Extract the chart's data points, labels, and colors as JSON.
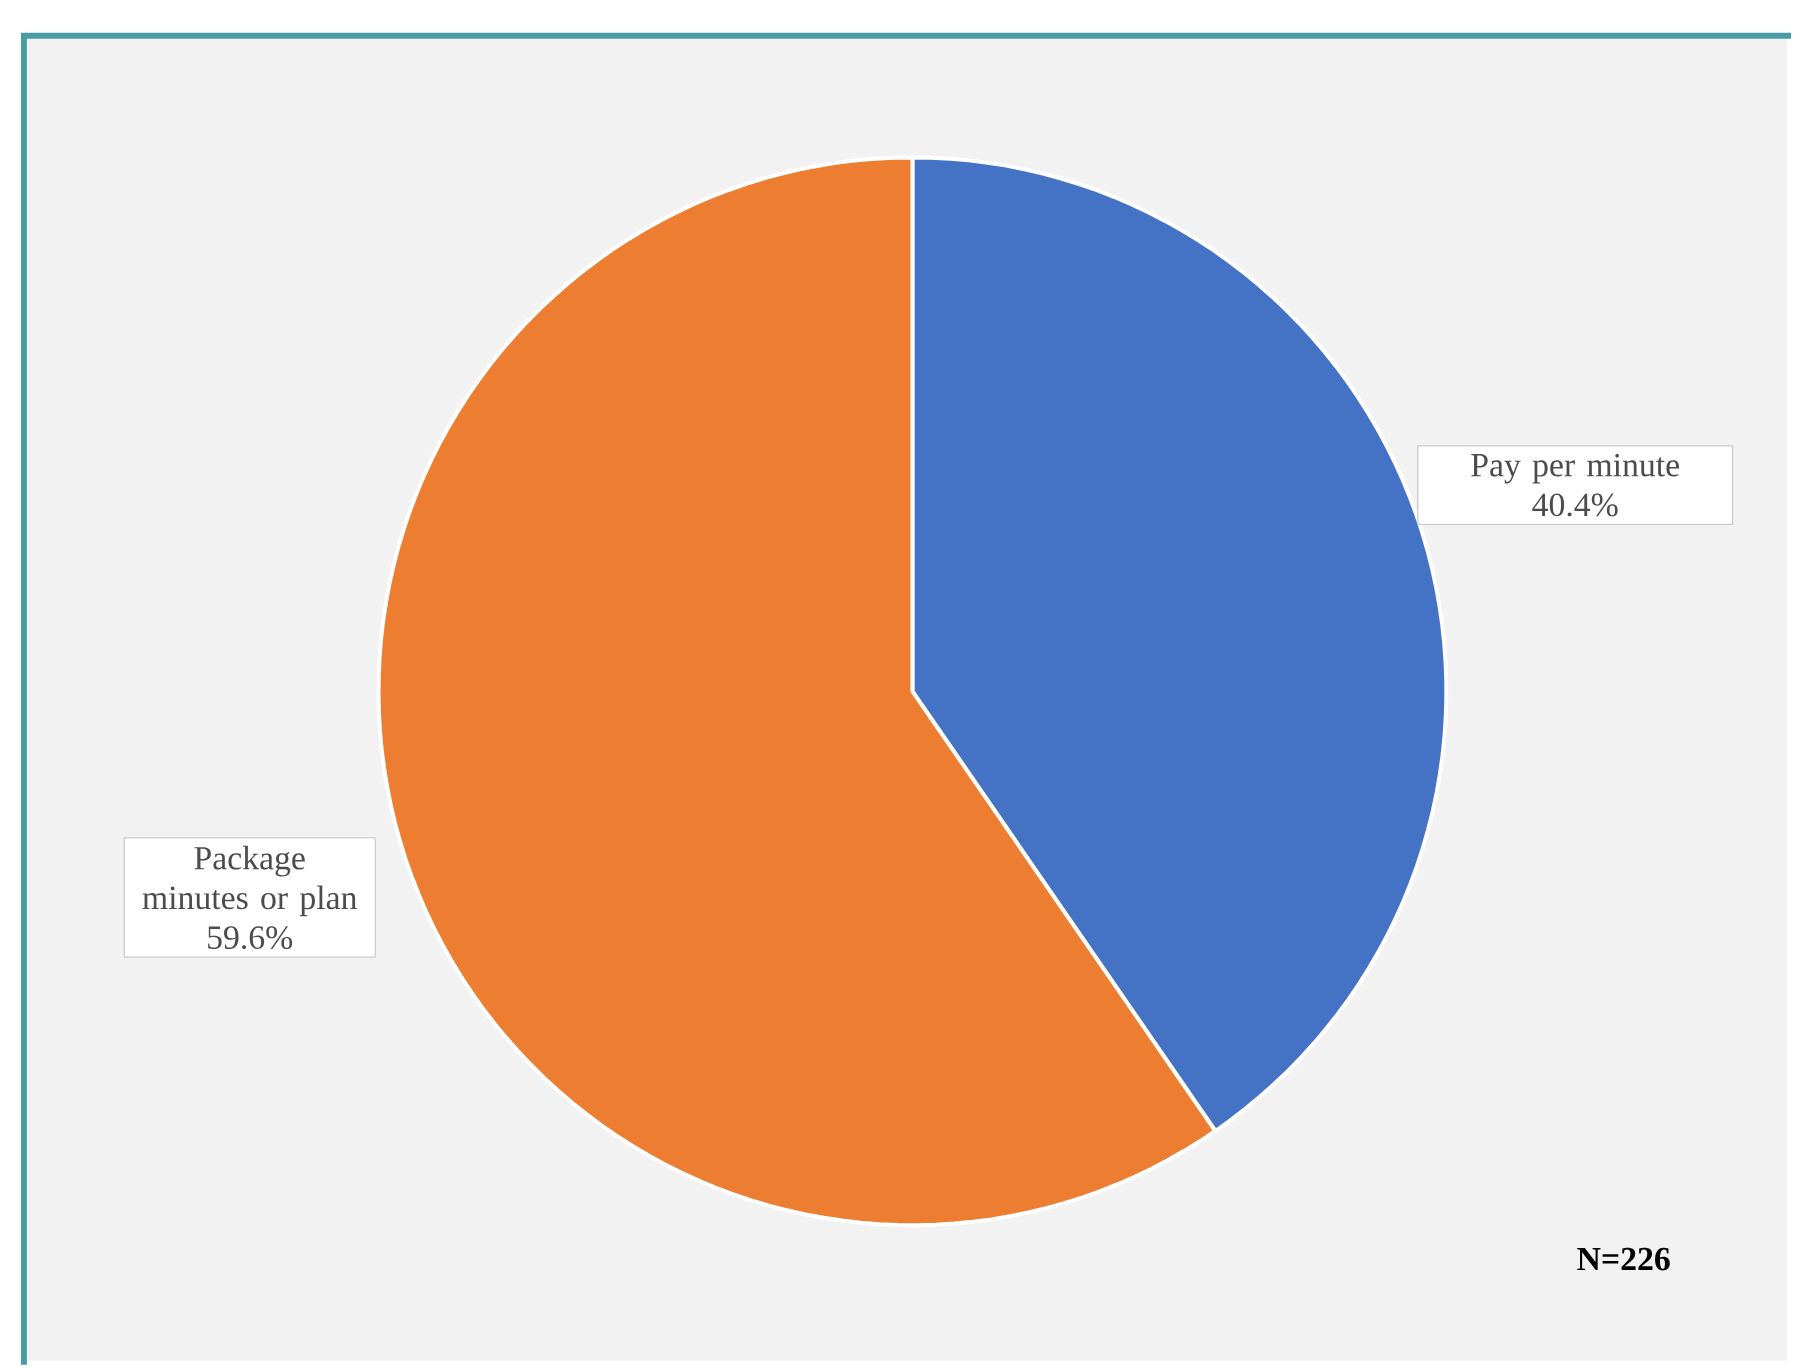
{
  "chart_data": {
    "type": "pie",
    "categories": [
      "Pay per minute",
      "Package minutes or plan"
    ],
    "values": [
      40.4,
      59.6
    ],
    "colors": [
      "#4472c4",
      "#ed7d31"
    ],
    "value_labels": [
      "40.4%",
      "59.6%"
    ],
    "annotations": [
      "N=226"
    ]
  }
}
